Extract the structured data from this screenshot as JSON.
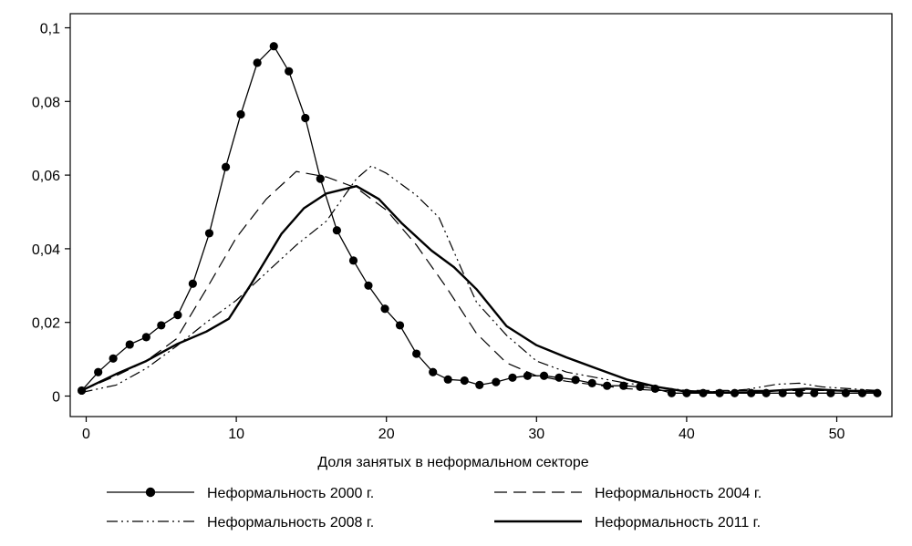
{
  "chart_data": {
    "type": "line",
    "title": "",
    "xlabel": "Доля занятых в неформальном секторе",
    "ylabel": "",
    "xlim": [
      -1,
      53
    ],
    "ylim": [
      -0.002,
      0.1
    ],
    "x_ticks": [
      0,
      10,
      20,
      30,
      40,
      50
    ],
    "x_tick_labels": [
      "0",
      "10",
      "20",
      "30",
      "40",
      "50"
    ],
    "y_ticks": [
      0,
      0.02,
      0.04,
      0.06,
      0.08,
      0.1
    ],
    "y_tick_labels": [
      "0",
      "0,02",
      "0,04",
      "0,06",
      "0,08",
      "0,1"
    ],
    "grid": false,
    "legend_position": "bottom",
    "series": [
      {
        "name": "Неформальность 2000 г.",
        "style": "solid-markers",
        "x": [
          -0.3,
          0.8,
          1.8,
          2.9,
          4,
          5,
          6.1,
          7.1,
          8.2,
          9.3,
          10.3,
          11.4,
          12.5,
          13.5,
          14.6,
          15.6,
          16.7,
          17.8,
          18.8,
          19.9,
          20.9,
          22,
          23.1,
          24.1,
          25.2,
          26.2,
          27.3,
          28.4,
          29.4,
          30.5,
          31.5,
          32.6,
          33.7,
          34.7,
          35.8,
          36.9,
          37.9,
          39,
          40,
          41.1,
          42.2,
          43.2,
          44.3,
          45.3,
          46.4,
          47.5,
          48.5,
          49.6,
          50.6,
          51.7,
          52.7
        ],
        "y": [
          0.0015,
          0.0065,
          0.0102,
          0.014,
          0.016,
          0.0192,
          0.022,
          0.0305,
          0.0442,
          0.0622,
          0.0765,
          0.0905,
          0.095,
          0.0882,
          0.0755,
          0.059,
          0.045,
          0.0368,
          0.03,
          0.0237,
          0.0192,
          0.0115,
          0.0065,
          0.0045,
          0.0042,
          0.003,
          0.0038,
          0.005,
          0.0055,
          0.0055,
          0.005,
          0.0044,
          0.0035,
          0.0028,
          0.0028,
          0.0025,
          0.002,
          0.0008,
          0.0008,
          0.0008,
          0.0008,
          0.0008,
          0.0008,
          0.0008,
          0.0008,
          0.0008,
          0.0008,
          0.0008,
          0.0008,
          0.0008,
          0.0008
        ]
      },
      {
        "name": "Неформальность 2004 г.",
        "style": "dashed",
        "x": [
          -0.3,
          2,
          4,
          6,
          8,
          10,
          12,
          14,
          16,
          18,
          20,
          22,
          24,
          26,
          28,
          30,
          32,
          34,
          36,
          38,
          40,
          42,
          44,
          46,
          48,
          50,
          52.7
        ],
        "y": [
          0.0015,
          0.0055,
          0.0095,
          0.0155,
          0.029,
          0.043,
          0.0535,
          0.061,
          0.0595,
          0.0565,
          0.0505,
          0.041,
          0.0295,
          0.017,
          0.009,
          0.0055,
          0.004,
          0.003,
          0.002,
          0.0015,
          0.0015,
          0.0015,
          0.0015,
          0.0015,
          0.0015,
          0.0015,
          0.0015
        ]
      },
      {
        "name": "Неформальность 2008 г.",
        "style": "dash-dot-dot",
        "x": [
          -0.3,
          2,
          4,
          6,
          8,
          10,
          12,
          14,
          16,
          18,
          19,
          20,
          22,
          23.5,
          25,
          26,
          28,
          30,
          32,
          34,
          36,
          38,
          40,
          42,
          44,
          46,
          47.5,
          49,
          52.7
        ],
        "y": [
          0.001,
          0.003,
          0.0075,
          0.0135,
          0.02,
          0.026,
          0.0335,
          0.041,
          0.0475,
          0.059,
          0.0625,
          0.0605,
          0.0545,
          0.0485,
          0.0345,
          0.0255,
          0.0165,
          0.0095,
          0.0065,
          0.005,
          0.0035,
          0.0025,
          0.0015,
          0.0012,
          0.0018,
          0.0032,
          0.0035,
          0.0025,
          0.0015
        ]
      },
      {
        "name": "Неформальность 2011 г.",
        "style": "thick-solid",
        "x": [
          -0.3,
          2,
          4,
          6,
          8,
          9.5,
          11,
          13,
          14.5,
          16,
          18,
          19.5,
          21,
          23,
          24.5,
          26,
          28,
          30,
          32,
          34,
          36,
          38,
          40,
          42,
          44,
          46,
          48,
          50,
          52.7
        ],
        "y": [
          0.0015,
          0.006,
          0.0095,
          0.014,
          0.0175,
          0.021,
          0.0305,
          0.044,
          0.051,
          0.055,
          0.057,
          0.0535,
          0.047,
          0.0395,
          0.035,
          0.029,
          0.019,
          0.0138,
          0.0105,
          0.0075,
          0.0045,
          0.0025,
          0.0012,
          0.001,
          0.001,
          0.0015,
          0.002,
          0.0015,
          0.0012
        ]
      }
    ]
  }
}
